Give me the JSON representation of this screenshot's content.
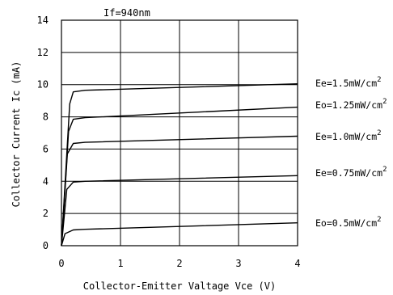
{
  "chart_data": {
    "type": "line",
    "title": "If=940nm",
    "xlabel": "Collector-Emitter Valtage Vce (V)",
    "ylabel": "Collector Current Ic (mA)",
    "xlim": [
      0,
      4
    ],
    "ylim": [
      0,
      14
    ],
    "x_ticks": [
      "0",
      "1",
      "2",
      "3",
      "4"
    ],
    "y_ticks": [
      "0",
      "2",
      "4",
      "6",
      "8",
      "10",
      "12",
      "14"
    ],
    "grid": true,
    "series": [
      {
        "name": "Ee=1.5mW/cm",
        "name_sup": "2",
        "points": [
          [
            0,
            0
          ],
          [
            0.14,
            8.8
          ],
          [
            0.2,
            9.55
          ],
          [
            0.4,
            9.65
          ],
          [
            4,
            10.05
          ]
        ]
      },
      {
        "name": "Eo=1.25mW/cm",
        "name_sup": "2",
        "points": [
          [
            0,
            0
          ],
          [
            0.12,
            7.1
          ],
          [
            0.2,
            7.85
          ],
          [
            0.4,
            7.95
          ],
          [
            4,
            8.6
          ]
        ]
      },
      {
        "name": "Ee=1.0mW/cm",
        "name_sup": "2",
        "points": [
          [
            0,
            0
          ],
          [
            0.1,
            5.7
          ],
          [
            0.2,
            6.35
          ],
          [
            0.4,
            6.42
          ],
          [
            4,
            6.8
          ]
        ]
      },
      {
        "name": "Ee=0.75mW/cm",
        "name_sup": "2",
        "points": [
          [
            0,
            0
          ],
          [
            0.09,
            3.5
          ],
          [
            0.2,
            3.95
          ],
          [
            0.4,
            4.0
          ],
          [
            4,
            4.35
          ]
        ]
      },
      {
        "name": "Eo=0.5mW/cm",
        "name_sup": "2",
        "points": [
          [
            0,
            0
          ],
          [
            0.06,
            0.75
          ],
          [
            0.2,
            0.98
          ],
          [
            0.4,
            1.02
          ],
          [
            4,
            1.42
          ]
        ]
      }
    ]
  }
}
